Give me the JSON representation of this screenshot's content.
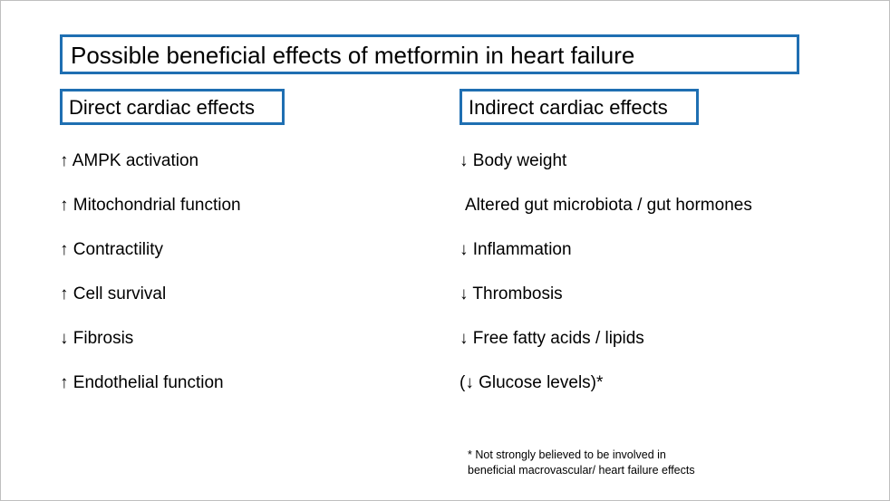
{
  "title": "Possible beneficial effects of metformin in heart failure",
  "direct": {
    "heading": "Direct cardiac effects",
    "items": [
      "↑ AMPK activation",
      "↑ Mitochondrial function",
      "↑ Contractility",
      "↑ Cell survival",
      "↓ Fibrosis",
      "↑ Endothelial function"
    ]
  },
  "indirect": {
    "heading": "Indirect cardiac effects",
    "items": [
      "↓ Body weight",
      "Altered gut microbiota / gut hormones",
      "↓ Inflammation",
      "↓ Thrombosis",
      "↓ Free fatty acids / lipids",
      "(↓ Glucose levels)*"
    ]
  },
  "footnote": {
    "line1": "* Not strongly believed to be involved in",
    "line2": "beneficial macrovascular/ heart failure effects"
  },
  "colors": {
    "box_border": "#1f6fb2",
    "text": "#000000",
    "background": "#ffffff"
  }
}
